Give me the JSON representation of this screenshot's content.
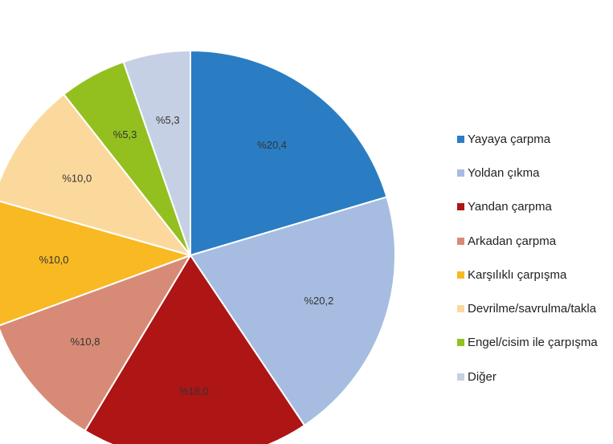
{
  "chart_data": {
    "type": "pie",
    "title": "",
    "start_angle_deg": 0,
    "direction": "clockwise",
    "legend_position": "right",
    "slices": [
      {
        "name": "Yayaya çarpma",
        "value": 20.4,
        "label": "%20,4",
        "color": "#2a7dc3"
      },
      {
        "name": "Yoldan çıkma",
        "value": 20.2,
        "label": "%20,2",
        "color": "#a6bde1"
      },
      {
        "name": "Yandan çarpma",
        "value": 18.0,
        "label": "%18,0",
        "color": "#ae1515"
      },
      {
        "name": "Arkadan çarpma",
        "value": 10.8,
        "label": "%10,8",
        "color": "#d78b76"
      },
      {
        "name": "Karşılıklı çarpışma",
        "value": 10.0,
        "label": "%10,0",
        "color": "#f8b923"
      },
      {
        "name": "Devrilme/savrulma/takla",
        "value": 10.0,
        "label": "%10,0",
        "color": "#fbd99d"
      },
      {
        "name": "Engel/cisim ile çarpışma",
        "value": 5.3,
        "label": "%5,3",
        "color": "#93c01f"
      },
      {
        "name": "Diğer",
        "value": 5.3,
        "label": "%5,3",
        "color": "#c6d0e4"
      }
    ]
  }
}
